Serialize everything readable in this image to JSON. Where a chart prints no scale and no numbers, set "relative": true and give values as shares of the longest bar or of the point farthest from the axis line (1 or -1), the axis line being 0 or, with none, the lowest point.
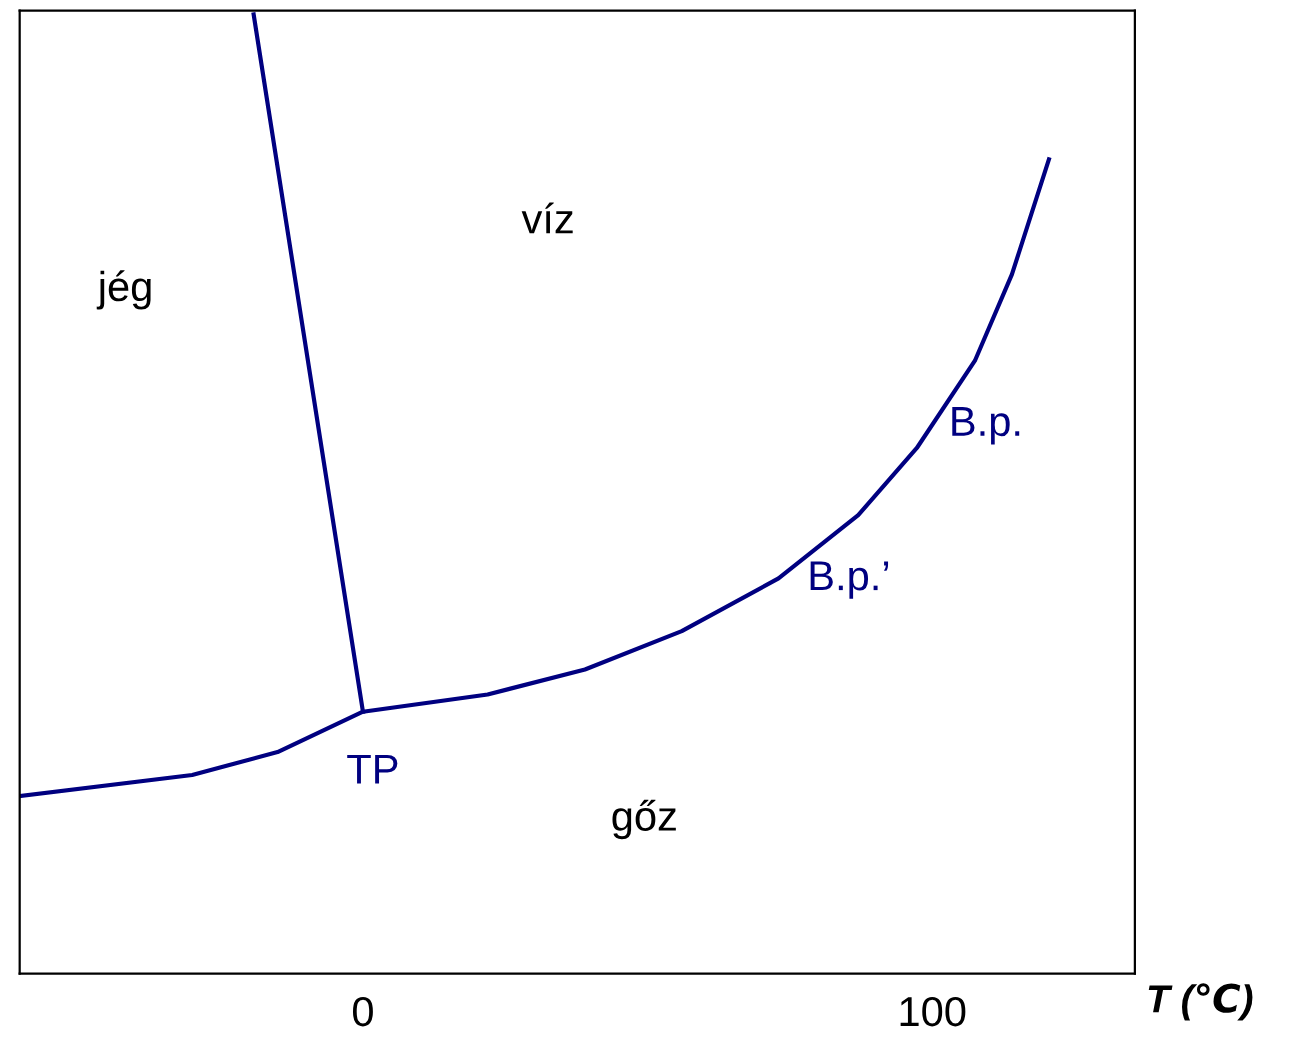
{
  "chart_data": {
    "type": "line",
    "relative": true,
    "xlabel": "T (℃)",
    "xlim": [
      -60.3,
      135.6
    ],
    "xticks": [
      0,
      100
    ],
    "tick_labels": "x",
    "grid": false,
    "legend": false,
    "marker": "none",
    "line_style": "solid",
    "series": [
      {
        "color": "#000080",
        "x": [
          -60.3,
          -30,
          -15,
          0,
          21.9,
          39,
          56,
          73,
          87,
          97.3,
          107.5,
          114,
          120.5
        ],
        "values": [
          0.185,
          0.207,
          0.231,
          0.273,
          0.291,
          0.317,
          0.357,
          0.412,
          0.478,
          0.548,
          0.639,
          0.729,
          0.849
        ]
      },
      {
        "color": "#000080",
        "x": [
          0,
          -19.2
        ],
        "values": [
          0.273,
          1.0
        ]
      }
    ],
    "annotations": [
      "jég",
      "víz",
      "gőz",
      {
        "text": "TP",
        "x": 0,
        "y": 0.273
      },
      {
        "text": "B.p.",
        "x": 100,
        "y": 0.572
      },
      {
        "text": "B.p.’",
        "x": 80,
        "y": 0.44
      }
    ]
  }
}
